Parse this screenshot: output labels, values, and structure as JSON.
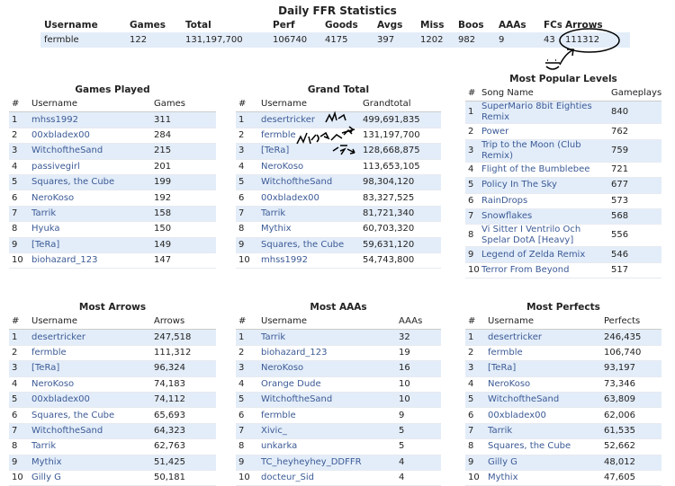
{
  "title": "Daily FFR Statistics",
  "summary": {
    "headers": [
      "Username",
      "Games",
      "Total",
      "Perf",
      "Goods",
      "Avgs",
      "Miss",
      "Boos",
      "AAAs",
      "FCs",
      "Arrows"
    ],
    "row": [
      "fermble",
      "122",
      "131,197,700",
      "106740",
      "4175",
      "397",
      "1202",
      "982",
      "9",
      "43",
      "111312"
    ]
  },
  "tables": [
    {
      "title": "Games Played",
      "headers": [
        "#",
        "Username",
        "Games"
      ],
      "rows": [
        [
          "1",
          "mhss1992",
          "311"
        ],
        [
          "2",
          "00xbladex00",
          "284"
        ],
        [
          "3",
          "WitchoftheSand",
          "215"
        ],
        [
          "4",
          "passivegirl",
          "201"
        ],
        [
          "5",
          "Squares, the Cube",
          "199"
        ],
        [
          "6",
          "NeroKoso",
          "192"
        ],
        [
          "7",
          "Tarrik",
          "158"
        ],
        [
          "8",
          "Hyuka",
          "150"
        ],
        [
          "9",
          "[TeRa]",
          "149"
        ],
        [
          "10",
          "biohazard_123",
          "147"
        ]
      ]
    },
    {
      "title": "Grand Total",
      "headers": [
        "#",
        "Username",
        "Grandtotal"
      ],
      "rows": [
        [
          "1",
          "desertricker",
          "499,691,835"
        ],
        [
          "2",
          "fermble",
          "131,197,700"
        ],
        [
          "3",
          "[TeRa]",
          "128,668,875"
        ],
        [
          "4",
          "NeroKoso",
          "113,653,105"
        ],
        [
          "5",
          "WitchoftheSand",
          "98,304,120"
        ],
        [
          "6",
          "00xbladex00",
          "83,327,525"
        ],
        [
          "7",
          "Tarrik",
          "81,721,340"
        ],
        [
          "8",
          "Mythix",
          "60,703,320"
        ],
        [
          "9",
          "Squares, the Cube",
          "59,631,120"
        ],
        [
          "10",
          "mhss1992",
          "54,743,800"
        ]
      ]
    },
    {
      "title": "Most Popular Levels",
      "headers": [
        "#",
        "Song Name",
        "Gameplays"
      ],
      "rows": [
        [
          "1",
          "SuperMario 8bit Eighties Remix",
          "840"
        ],
        [
          "2",
          "Power",
          "762"
        ],
        [
          "3",
          "Trip to the Moon (Club Remix)",
          "759"
        ],
        [
          "4",
          "Flight of the Bumblebee",
          "721"
        ],
        [
          "5",
          "Policy In The Sky",
          "677"
        ],
        [
          "6",
          "RainDrops",
          "573"
        ],
        [
          "7",
          "Snowflakes",
          "568"
        ],
        [
          "8",
          "Vi Sitter I Ventrilo Och Spelar DotA [Heavy]",
          "556"
        ],
        [
          "9",
          "Legend of Zelda Remix",
          "546"
        ],
        [
          "10",
          "Terror From Beyond",
          "517"
        ]
      ]
    },
    {
      "title": "Most Arrows",
      "headers": [
        "#",
        "Username",
        "Arrows"
      ],
      "rows": [
        [
          "1",
          "desertricker",
          "247,518"
        ],
        [
          "2",
          "fermble",
          "111,312"
        ],
        [
          "3",
          "[TeRa]",
          "96,324"
        ],
        [
          "4",
          "NeroKoso",
          "74,183"
        ],
        [
          "5",
          "00xbladex00",
          "74,112"
        ],
        [
          "6",
          "Squares, the Cube",
          "65,693"
        ],
        [
          "7",
          "WitchoftheSand",
          "64,323"
        ],
        [
          "8",
          "Tarrik",
          "62,763"
        ],
        [
          "9",
          "Mythix",
          "51,425"
        ],
        [
          "10",
          "Gilly G",
          "50,181"
        ]
      ]
    },
    {
      "title": "Most AAAs",
      "headers": [
        "#",
        "Username",
        "AAAs"
      ],
      "rows": [
        [
          "1",
          "Tarrik",
          "32"
        ],
        [
          "2",
          "biohazard_123",
          "19"
        ],
        [
          "3",
          "NeroKoso",
          "16"
        ],
        [
          "4",
          "Orange Dude",
          "10"
        ],
        [
          "5",
          "WitchoftheSand",
          "10"
        ],
        [
          "6",
          "fermble",
          "9"
        ],
        [
          "7",
          "Xivic_",
          "5"
        ],
        [
          "8",
          "unkarka",
          "5"
        ],
        [
          "9",
          "TC_heyheyhey_DDFFR",
          "4"
        ],
        [
          "10",
          "docteur_Sid",
          "4"
        ]
      ]
    },
    {
      "title": "Most Perfects",
      "headers": [
        "#",
        "Username",
        "Perfects"
      ],
      "rows": [
        [
          "1",
          "desertricker",
          "246,435"
        ],
        [
          "2",
          "fermble",
          "106,740"
        ],
        [
          "3",
          "[TeRa]",
          "93,197"
        ],
        [
          "4",
          "NeroKoso",
          "73,346"
        ],
        [
          "5",
          "WitchoftheSand",
          "63,809"
        ],
        [
          "6",
          "00xbladex00",
          "62,006"
        ],
        [
          "7",
          "Tarrik",
          "61,535"
        ],
        [
          "8",
          "Squares, the Cube",
          "52,662"
        ],
        [
          "9",
          "Gilly G",
          "48,012"
        ],
        [
          "10",
          "Mythix",
          "47,605"
        ]
      ]
    }
  ]
}
